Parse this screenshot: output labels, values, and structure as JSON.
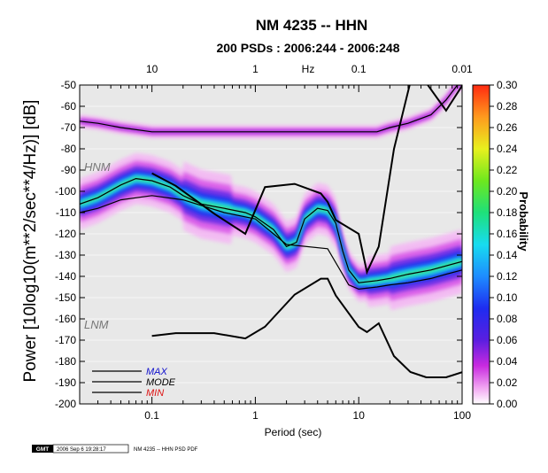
{
  "title": "NM 4235 -- HHN",
  "subtitle": "200 PSDs : 2006:244 - 2006:248",
  "footer": {
    "logo": "GMT",
    "timestamp": "2006 Sep  6 19:28:17",
    "label": "NM 4235 -- HHN PSD PDF"
  },
  "chart_data": {
    "type": "heatmap",
    "xlabel": "Period (sec)",
    "ylabel": "Power [10log10(m**2/sec**4/Hz)] [dB]",
    "x_scale": "log",
    "xlim": [
      0.02,
      100
    ],
    "ylim": [
      -200,
      -50
    ],
    "x_ticks": [
      0.1,
      1,
      10,
      100
    ],
    "x_tick_labels": [
      "0.1",
      "1",
      "10",
      "100"
    ],
    "y_ticks": [
      -200,
      -190,
      -180,
      -170,
      -160,
      -150,
      -140,
      -130,
      -120,
      -110,
      -100,
      -90,
      -80,
      -70,
      -60,
      -50
    ],
    "top_axis_label": "Hz",
    "top_ticks": [
      10,
      1,
      0.1,
      0.01
    ],
    "top_tick_labels": [
      "10",
      "1",
      "0.1",
      "0.01"
    ],
    "colorbar": {
      "label": "Probability",
      "range": [
        0,
        0.3
      ],
      "ticks": [
        "0.00",
        "0.02",
        "0.04",
        "0.06",
        "0.08",
        "0.10",
        "0.12",
        "0.14",
        "0.16",
        "0.18",
        "0.20",
        "0.22",
        "0.24",
        "0.26",
        "0.28",
        "0.30"
      ]
    },
    "model_labels": [
      "HNM",
      "LNM"
    ],
    "legend": [
      "MAX",
      "MODE",
      "MIN"
    ],
    "legend_colors": [
      "#1010cc",
      "#000000",
      "#dd1111"
    ],
    "series": [
      {
        "name": "MAX",
        "x": [
          0.02,
          0.03,
          0.05,
          0.1,
          0.2,
          0.5,
          1,
          2,
          5,
          10,
          15,
          20,
          30,
          50,
          70,
          90,
          100
        ],
        "y": [
          -67,
          -68,
          -70,
          -72,
          -72,
          -72,
          -72,
          -72,
          -72,
          -72,
          -72,
          -70,
          -68,
          -64,
          -57,
          -50,
          -50
        ]
      },
      {
        "name": "MODE",
        "x": [
          0.02,
          0.03,
          0.05,
          0.07,
          0.1,
          0.15,
          0.2,
          0.3,
          0.5,
          0.8,
          1,
          1.5,
          2,
          2.5,
          3,
          4,
          5,
          6,
          7,
          8,
          10,
          15,
          20,
          30,
          50,
          100
        ],
        "y": [
          -106,
          -103,
          -97,
          -94,
          -95,
          -98,
          -102,
          -106,
          -108,
          -110,
          -112,
          -118,
          -126,
          -124,
          -113,
          -108,
          -109,
          -115,
          -128,
          -137,
          -143,
          -142,
          -141,
          -139,
          -137,
          -133
        ]
      },
      {
        "name": "MIN",
        "x": [
          0.02,
          0.03,
          0.05,
          0.1,
          0.2,
          0.5,
          1,
          2,
          5,
          8,
          10,
          15,
          20,
          30,
          50,
          70,
          100
        ],
        "y": [
          -110,
          -108,
          -104,
          -102,
          -104,
          -110,
          -113,
          -125,
          -127,
          -144,
          -146,
          -145,
          -144,
          -143,
          -141,
          -139,
          -137
        ]
      }
    ],
    "density_center": {
      "x": [
        0.02,
        0.03,
        0.05,
        0.07,
        0.1,
        0.15,
        0.2,
        0.3,
        0.5,
        0.8,
        1,
        1.5,
        2,
        2.5,
        3,
        4,
        5,
        6,
        7,
        8,
        10,
        15,
        20,
        30,
        50,
        100
      ],
      "y": [
        -106,
        -103,
        -97,
        -94,
        -95,
        -98,
        -102,
        -106,
        -108,
        -110,
        -112,
        -118,
        -126,
        -124,
        -113,
        -108,
        -109,
        -115,
        -128,
        -137,
        -143,
        -142,
        -141,
        -139,
        -137,
        -133
      ]
    },
    "reference_models": [
      {
        "name": "HNM",
        "period": [
          0.1,
          0.17,
          0.4,
          0.8,
          1.24,
          2.4,
          4.3,
          5,
          6,
          10,
          12,
          15.6,
          21.9,
          31.6,
          45,
          70,
          101
        ],
        "db": [
          -91.5,
          -97.4,
          -110.5,
          -120,
          -98,
          -96.5,
          -101,
          -105,
          -113.5,
          -120,
          -138,
          -126,
          -80.1,
          -48.5,
          -49,
          -62,
          -50
        ]
      },
      {
        "name": "LNM",
        "period": [
          0.1,
          0.17,
          0.4,
          0.8,
          1.24,
          2.4,
          4.3,
          5,
          6,
          10,
          12,
          15.6,
          21.9,
          31.6,
          45,
          70,
          101
        ],
        "db": [
          -168,
          -166.7,
          -166.7,
          -169.2,
          -163.7,
          -148.6,
          -141.1,
          -141.1,
          -149,
          -163.8,
          -166.2,
          -162.1,
          -177.5,
          -185,
          -187.5,
          -187.5,
          -185
        ]
      }
    ]
  }
}
